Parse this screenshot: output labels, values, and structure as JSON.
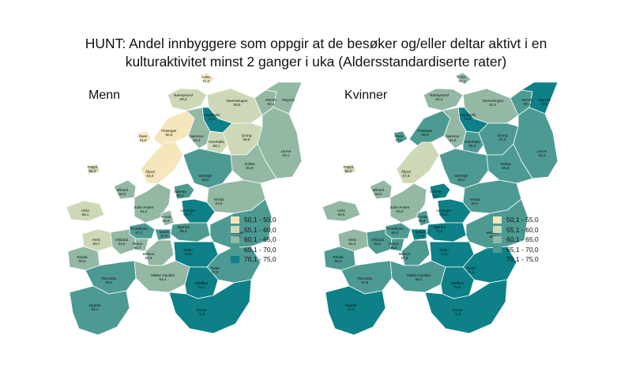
{
  "title": {
    "line1": "HUNT: Andel innbyggere som oppgir at de besøker og/eller deltar aktivt i en",
    "line2": "kulturaktivitet minst 2 ganger i uka (Aldersstandardiserte rater)"
  },
  "legend": [
    {
      "label": "50,1 - 55,0",
      "color": "#f5e6bc"
    },
    {
      "label": "55,1 - 60,0",
      "color": "#cdd8b6"
    },
    {
      "label": "60,1 - 65,0",
      "color": "#93b8a4"
    },
    {
      "label": "65,1 - 70,0",
      "color": "#4d9a93"
    },
    {
      "label": "70,1 - 75,0",
      "color": "#0d8088"
    }
  ],
  "maps": [
    {
      "heading": "Menn",
      "municipalities": [
        {
          "name": "Leka",
          "value": "51,4"
        },
        {
          "name": "Nærøysund",
          "value": "58,4"
        },
        {
          "name": "Namsskogan",
          "value": "58,5"
        },
        {
          "name": "Rørvik",
          "value": "62,1"
        },
        {
          "name": "Røyrvik",
          "value": ""
        },
        {
          "name": "Høylandet",
          "value": "72,5"
        },
        {
          "name": "Osen",
          "value": "54,6"
        },
        {
          "name": "Flatanger",
          "value": "50,5"
        },
        {
          "name": "Namsos",
          "value": "63,3"
        },
        {
          "name": "Overhalla",
          "value": "58,1"
        },
        {
          "name": "Grong",
          "value": "58,6"
        },
        {
          "name": "Lierne",
          "value": "63,1"
        },
        {
          "name": "Frøya",
          "value": "55,2"
        },
        {
          "name": "Åfjord",
          "value": "54,0"
        },
        {
          "name": "Snåsa",
          "value": "64,9"
        },
        {
          "name": "Steinkjer",
          "value": "66,0"
        },
        {
          "name": "Ørland",
          "value": "60,8"
        },
        {
          "name": "Inderøy",
          "value": "68,2"
        },
        {
          "name": "Verdal",
          "value": "63,9"
        },
        {
          "name": "Hitra",
          "value": "58,1"
        },
        {
          "name": "Indre Fosen",
          "value": "61,2"
        },
        {
          "name": "Levanger",
          "value": "70,7"
        },
        {
          "name": "Frosta",
          "value": "62,6"
        },
        {
          "name": "Trondheim",
          "value": "67,2"
        },
        {
          "name": "Stjørdal",
          "value": "65,4"
        },
        {
          "name": "Heim",
          "value": "59,7"
        },
        {
          "name": "Orkland",
          "value": "61,8"
        },
        {
          "name": "Skaun",
          "value": "62,7"
        },
        {
          "name": "Malvik",
          "value": "67,5"
        },
        {
          "name": "Meråker",
          "value": "65,9"
        },
        {
          "name": "Rindal",
          "value": "60,6"
        },
        {
          "name": "Melhus",
          "value": "63,9"
        },
        {
          "name": "Selbu",
          "value": "70,6"
        },
        {
          "name": "Tydal",
          "value": "70,0"
        },
        {
          "name": "Midtre Gauldal",
          "value": "64,4"
        },
        {
          "name": "Rennebu",
          "value": "66,0"
        },
        {
          "name": "Holtålen",
          "value": "73,1"
        },
        {
          "name": "Oppdal",
          "value": "66,1"
        },
        {
          "name": "Røros",
          "value": "72,8"
        }
      ]
    },
    {
      "heading": "Kvinner",
      "municipalities": [
        {
          "name": "Leka",
          "value": "62,1"
        },
        {
          "name": "Nærøysund",
          "value": "61,4"
        },
        {
          "name": "Namsskogan",
          "value": "61,4"
        },
        {
          "name": "Rørvik",
          "value": "65,1"
        },
        {
          "name": "Røyrvik",
          "value": "72,9"
        },
        {
          "name": "Høylandet",
          "value": "73,8"
        },
        {
          "name": "Osen",
          "value": "67,2"
        },
        {
          "name": "Flatanger",
          "value": "66,6"
        },
        {
          "name": "Namsos",
          "value": "64,5"
        },
        {
          "name": "Overhalla",
          "value": "65,3"
        },
        {
          "name": "Grong",
          "value": "67,5"
        },
        {
          "name": "Lierne",
          "value": "65,3"
        },
        {
          "name": "Frøya",
          "value": "56,0"
        },
        {
          "name": "Åfjord",
          "value": "57,8"
        },
        {
          "name": "Snåsa",
          "value": "65,9"
        },
        {
          "name": "Steinkjer",
          "value": "66,2"
        },
        {
          "name": "Ørland",
          "value": "63,6"
        },
        {
          "name": "Inderøy",
          "value": "71,5"
        },
        {
          "name": "Verdal",
          "value": "69,2"
        },
        {
          "name": "Hitra",
          "value": "63,6"
        },
        {
          "name": "Indre Fosen",
          "value": "63,0"
        },
        {
          "name": "Levanger",
          "value": "72,8"
        },
        {
          "name": "Frosta",
          "value": "68,8"
        },
        {
          "name": "Trondheim",
          "value": "69,3"
        },
        {
          "name": "Stjørdal",
          "value": "71,2"
        },
        {
          "name": "Heim",
          "value": "64,3"
        },
        {
          "name": "Orkland",
          "value": "65,2"
        },
        {
          "name": "Skaun",
          "value": "66,5"
        },
        {
          "name": "Malvik",
          "value": "71,0"
        },
        {
          "name": "Meråker",
          "value": "69,5"
        },
        {
          "name": "Rindal",
          "value": "66,9"
        },
        {
          "name": "Melhus",
          "value": "67,8"
        },
        {
          "name": "Selbu",
          "value": "71,5"
        },
        {
          "name": "Tydal",
          "value": "71,0"
        },
        {
          "name": "Midtre Gauldal",
          "value": "68,2"
        },
        {
          "name": "Rennebu",
          "value": "67,5"
        },
        {
          "name": "Holtålen",
          "value": "70,5"
        },
        {
          "name": "Oppdal",
          "value": "71,3"
        },
        {
          "name": "Røros",
          "value": "72,8"
        }
      ]
    }
  ]
}
